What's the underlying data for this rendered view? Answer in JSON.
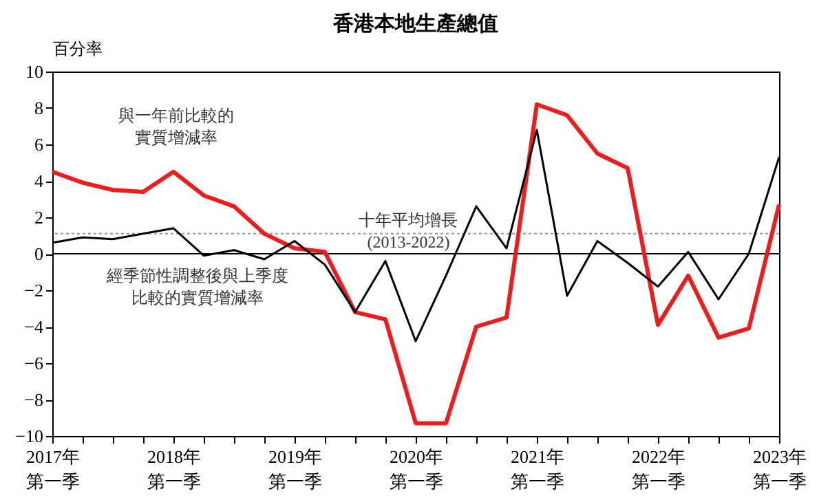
{
  "chart_data": {
    "type": "line",
    "title": "香港本地生產總值",
    "ylabel": "百分率",
    "categories": [
      "2017年第一季",
      null,
      null,
      null,
      "2018年第一季",
      null,
      null,
      null,
      "2019年第一季",
      null,
      null,
      null,
      "2020年第一季",
      null,
      null,
      null,
      "2021年第一季",
      null,
      null,
      null,
      "2022年第一季",
      null,
      null,
      null,
      "2023年第一季"
    ],
    "series": [
      {
        "name": "與一年前比較的實質增減率",
        "color": "#ee1c1c",
        "values": [
          4.5,
          3.9,
          3.5,
          3.4,
          4.5,
          3.2,
          2.6,
          1.1,
          0.3,
          0.1,
          -3.2,
          -3.6,
          -9.3,
          -9.3,
          -4.0,
          -3.5,
          8.2,
          7.6,
          5.5,
          4.7,
          -3.9,
          -1.2,
          -4.6,
          -4.1,
          2.7
        ]
      },
      {
        "name": "經季節性調整後與上季度比較的實質增減率",
        "color": "#000000",
        "values": [
          0.6,
          0.9,
          0.8,
          1.1,
          1.4,
          -0.1,
          0.2,
          -0.3,
          0.7,
          -0.6,
          -3.2,
          -0.4,
          -4.8,
          -1.2,
          2.6,
          0.3,
          6.8,
          -2.3,
          0.7,
          -0.5,
          -1.8,
          0.1,
          -2.5,
          0.0,
          5.3
        ]
      }
    ],
    "ylim": [
      -10,
      10
    ],
    "yticks": [
      -10,
      -8,
      -6,
      -4,
      -2,
      0,
      2,
      4,
      6,
      8,
      10
    ],
    "ref_lines": [
      {
        "axis": "y",
        "value": 0,
        "label": null,
        "color": "#000000",
        "line_style": "solid"
      },
      {
        "axis": "y",
        "value": 1.1,
        "label": "十年平均增長\n(2013-2022)",
        "color": "#999999",
        "line_style": "dotted"
      }
    ],
    "grid": false,
    "marker": "none",
    "line_style": "solid"
  }
}
